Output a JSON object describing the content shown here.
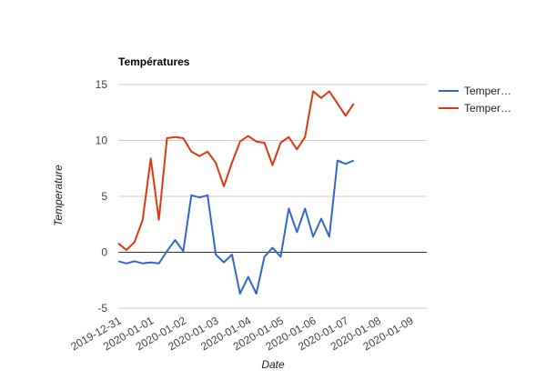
{
  "chart_data": {
    "type": "line",
    "title": "Températures",
    "xlabel": "Date",
    "ylabel": "Temperature",
    "ylim": [
      -5,
      15
    ],
    "yticks": [
      -5,
      0,
      5,
      10,
      15
    ],
    "xlim": [
      "2019-12-31",
      "2020-01-09T12:00"
    ],
    "xticks": [
      "2019-12-31",
      "2020-01-01",
      "2020-01-02",
      "2020-01-03",
      "2020-01-04",
      "2020-01-05",
      "2020-01-06",
      "2020-01-07",
      "2020-01-08",
      "2020-01-09"
    ],
    "grid": true,
    "legend": "right",
    "x": [
      "2019-12-31T00:00",
      "2019-12-31T06:00",
      "2019-12-31T12:00",
      "2019-12-31T18:00",
      "2020-01-01T00:00",
      "2020-01-01T06:00",
      "2020-01-01T12:00",
      "2020-01-01T18:00",
      "2020-01-02T00:00",
      "2020-01-02T06:00",
      "2020-01-02T12:00",
      "2020-01-02T18:00",
      "2020-01-03T00:00",
      "2020-01-03T06:00",
      "2020-01-03T12:00",
      "2020-01-03T18:00",
      "2020-01-04T00:00",
      "2020-01-04T06:00",
      "2020-01-04T12:00",
      "2020-01-04T18:00",
      "2020-01-05T00:00",
      "2020-01-05T06:00",
      "2020-01-05T12:00",
      "2020-01-05T18:00",
      "2020-01-06T00:00",
      "2020-01-06T06:00",
      "2020-01-06T12:00",
      "2020-01-06T18:00",
      "2020-01-07T00:00",
      "2020-01-07T06:00",
      "2020-01-07T12:00",
      "2020-01-07T18:00",
      "2020-01-08T00:00",
      "2020-01-08T06:00",
      "2020-01-08T12:00",
      "2020-01-08T18:00",
      "2020-01-09T00:00",
      "2020-01-09T06:00",
      "2020-01-09T12:00"
    ],
    "series": [
      {
        "name": "Temper…",
        "color": "#3366cc",
        "values": [
          -0.8,
          -1.0,
          -0.8,
          -1.0,
          -0.9,
          -1.0,
          0.1,
          1.1,
          0.1,
          5.1,
          4.9,
          5.1,
          -0.2,
          -0.9,
          -0.2,
          -3.7,
          -2.2,
          -3.7,
          -0.4,
          0.4,
          -0.4,
          3.9,
          1.8,
          3.9,
          1.4,
          3.0,
          1.4,
          8.2,
          7.9,
          8.2,
          null,
          null,
          null,
          null,
          null,
          null,
          null,
          null,
          null
        ]
      },
      {
        "name": "Temper…",
        "color": "#dc3912",
        "values": [
          0.8,
          0.2,
          0.9,
          2.9,
          8.4,
          2.9,
          10.2,
          10.3,
          10.2,
          9.0,
          8.6,
          9.0,
          8.0,
          5.9,
          8.0,
          9.9,
          10.4,
          9.9,
          9.8,
          7.8,
          9.8,
          10.3,
          9.2,
          10.3,
          14.4,
          13.8,
          14.4,
          13.3,
          12.2,
          13.3,
          null,
          null,
          null,
          null,
          null,
          null,
          null,
          null,
          null
        ]
      }
    ]
  }
}
